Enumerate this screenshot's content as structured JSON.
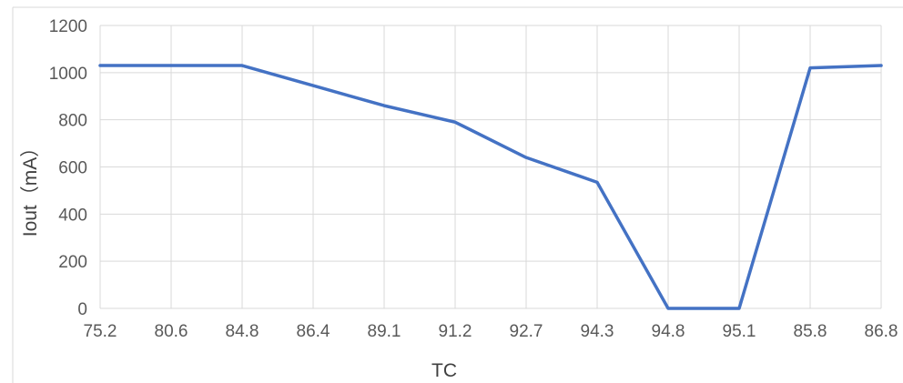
{
  "chart_data": {
    "type": "line",
    "title": "",
    "xlabel": "TC",
    "ylabel": "Iout（mA）",
    "categories": [
      "75.2",
      "80.6",
      "84.8",
      "86.4",
      "89.1",
      "91.2",
      "92.7",
      "94.3",
      "94.8",
      "95.1",
      "85.8",
      "86.8"
    ],
    "series": [
      {
        "values": [
          1030,
          1030,
          1030,
          945,
          860,
          790,
          640,
          535,
          0,
          0,
          1020,
          1030
        ]
      }
    ],
    "ylim": [
      0,
      1200
    ],
    "yticks": [
      "0",
      "200",
      "400",
      "600",
      "800",
      "1000",
      "1200"
    ],
    "grid": true,
    "legend": "none",
    "line_color": "#4472c4",
    "grid_color": "#d9d9d9"
  }
}
